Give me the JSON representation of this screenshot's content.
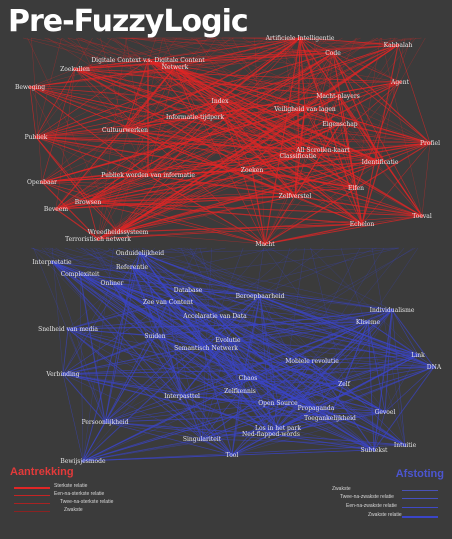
{
  "title": "Pre-FuzzyLogic",
  "colors": {
    "red": "#e02626",
    "blue": "#3a45c8",
    "background": "#3b3b3b",
    "label": "#e6e6e6"
  },
  "legend": {
    "left": {
      "title": "Aantrekking",
      "items": [
        "Sterkste relatie",
        "Een-na-sterkste relatie",
        "Twee-na-sterkste relatie",
        "Zwakste"
      ]
    },
    "right": {
      "title": "Afstoting",
      "items": [
        "Zwakste",
        "Twee-na-zwakste relatie",
        "Een-na-zwakste relatie",
        "Zwakste relatie"
      ]
    }
  },
  "nodes": {
    "red": [
      "Artificiele Intelligentie",
      "Kabbalah",
      "Code",
      "Digitale Context v.s. Digitale Content",
      "Netwerk",
      "Zoekallen",
      "Agent",
      "Beweging",
      "Macht-players",
      "Index",
      "Veiligheid van lagen",
      "Publiek",
      "Informatie-tijdperk",
      "Cultuurwerken",
      "Eigenschap",
      "Profiel",
      "All Scrollen-kaart",
      "Classificatie",
      "Identificatie",
      "Openbaar",
      "Publiek worden van informatie",
      "Zoeken",
      "Elfen",
      "Zelfverstel",
      "Browsen",
      "Beveem",
      "Echelon",
      "Toeval",
      "Wreedheidssysteem",
      "Terroristisch netwerk",
      "Macht"
    ],
    "blue": [
      "Onduidelijkheid",
      "Interpretatie",
      "Referentie",
      "Complexiteit",
      "Onliner",
      "Database",
      "Zee van Content",
      "Beroepbaarheid",
      "Individualisme",
      "Accelaratie van Data",
      "Kliseme",
      "Snelheid van media",
      "Suiden",
      "Evolutie",
      "Semantisch Netwerk",
      "Link",
      "Mobiele revolutie",
      "DNA",
      "Verbinding",
      "Chaos",
      "Zelf",
      "Zelfkennis",
      "Interpasttel",
      "Open Source",
      "Propaganda",
      "Gevoel",
      "Toegankelijkheid",
      "Persoonlijkheid",
      "Los in het park",
      "Ned-flapped-words",
      "Singulariteit",
      "Intuitie",
      "Subtekst",
      "Tool",
      "Bewijsjesmode"
    ]
  }
}
